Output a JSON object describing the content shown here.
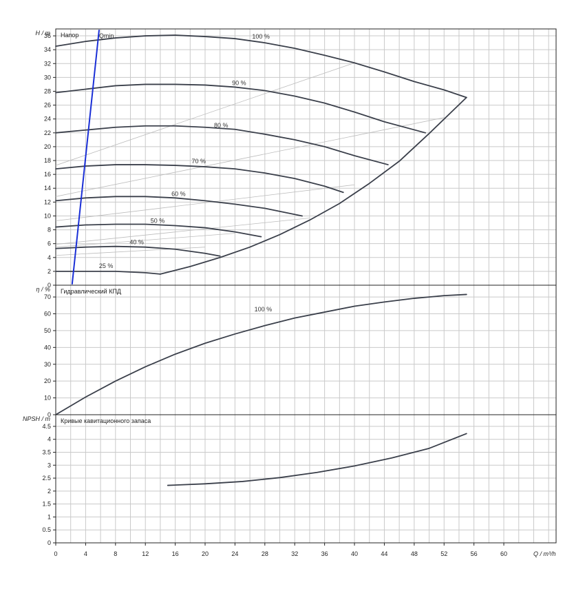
{
  "chart_data": [
    {
      "type": "line",
      "panel": "head",
      "title": "Напор",
      "ylabel": "H / m",
      "xlabel": "Q / m³/h",
      "xlim": [
        0,
        67
      ],
      "ylim": [
        0,
        37
      ],
      "x_ticks": [
        0,
        4,
        8,
        12,
        16,
        20,
        24,
        28,
        32,
        36,
        40,
        44,
        48,
        52,
        56,
        60
      ],
      "y_ticks": [
        0,
        2,
        4,
        6,
        8,
        10,
        12,
        14,
        16,
        18,
        20,
        22,
        24,
        26,
        28,
        30,
        32,
        34,
        36
      ],
      "grid": true,
      "series": [
        {
          "name": "100 %",
          "points": [
            [
              0,
              34.5
            ],
            [
              4,
              35.2
            ],
            [
              8,
              35.7
            ],
            [
              12,
              36.0
            ],
            [
              16,
              36.1
            ],
            [
              20,
              35.9
            ],
            [
              24,
              35.6
            ],
            [
              28,
              35.0
            ],
            [
              32,
              34.2
            ],
            [
              36,
              33.2
            ],
            [
              40,
              32.1
            ],
            [
              44,
              30.8
            ],
            [
              48,
              29.4
            ],
            [
              52,
              28.2
            ],
            [
              55,
              27.1
            ]
          ]
        },
        {
          "name": "90 %",
          "points": [
            [
              0,
              27.8
            ],
            [
              4,
              28.3
            ],
            [
              8,
              28.8
            ],
            [
              12,
              29.0
            ],
            [
              16,
              29.0
            ],
            [
              20,
              28.9
            ],
            [
              24,
              28.6
            ],
            [
              28,
              28.1
            ],
            [
              32,
              27.3
            ],
            [
              36,
              26.3
            ],
            [
              40,
              25.0
            ],
            [
              44,
              23.6
            ],
            [
              49.5,
              22.0
            ]
          ]
        },
        {
          "name": "80 %",
          "points": [
            [
              0,
              22.0
            ],
            [
              4,
              22.4
            ],
            [
              8,
              22.8
            ],
            [
              12,
              23.0
            ],
            [
              16,
              23.0
            ],
            [
              20,
              22.8
            ],
            [
              24,
              22.5
            ],
            [
              28,
              21.8
            ],
            [
              32,
              21.0
            ],
            [
              36,
              20.0
            ],
            [
              40,
              18.7
            ],
            [
              44.5,
              17.4
            ]
          ]
        },
        {
          "name": "70 %",
          "points": [
            [
              0,
              16.8
            ],
            [
              4,
              17.2
            ],
            [
              8,
              17.4
            ],
            [
              12,
              17.4
            ],
            [
              16,
              17.3
            ],
            [
              20,
              17.1
            ],
            [
              24,
              16.8
            ],
            [
              28,
              16.2
            ],
            [
              32,
              15.4
            ],
            [
              36,
              14.3
            ],
            [
              38.5,
              13.4
            ]
          ]
        },
        {
          "name": "60 %",
          "points": [
            [
              0,
              12.2
            ],
            [
              4,
              12.6
            ],
            [
              8,
              12.8
            ],
            [
              12,
              12.8
            ],
            [
              16,
              12.6
            ],
            [
              20,
              12.2
            ],
            [
              24,
              11.7
            ],
            [
              28,
              11.1
            ],
            [
              33,
              10.0
            ]
          ]
        },
        {
          "name": "50 %",
          "points": [
            [
              0,
              8.4
            ],
            [
              4,
              8.7
            ],
            [
              8,
              8.8
            ],
            [
              12,
              8.8
            ],
            [
              16,
              8.6
            ],
            [
              20,
              8.3
            ],
            [
              24,
              7.7
            ],
            [
              27.5,
              7.0
            ]
          ]
        },
        {
          "name": "40 %",
          "points": [
            [
              0,
              5.3
            ],
            [
              4,
              5.5
            ],
            [
              8,
              5.6
            ],
            [
              12,
              5.5
            ],
            [
              16,
              5.2
            ],
            [
              20,
              4.6
            ],
            [
              22,
              4.2
            ]
          ]
        },
        {
          "name": "25 %",
          "points": [
            [
              0,
              2.0
            ],
            [
              4,
              2.0
            ],
            [
              8,
              2.0
            ],
            [
              12,
              1.8
            ],
            [
              14,
              1.6
            ]
          ]
        },
        {
          "name": "",
          "points": [
            [
              14,
              1.6
            ],
            [
              18,
              2.7
            ],
            [
              22,
              4.0
            ],
            [
              26,
              5.5
            ],
            [
              30,
              7.3
            ],
            [
              34,
              9.4
            ],
            [
              38,
              11.8
            ],
            [
              42,
              14.7
            ],
            [
              46,
              17.9
            ],
            [
              50,
              21.9
            ],
            [
              55,
              27.1
            ]
          ]
        },
        {
          "name": "Qmin",
          "points": [
            [
              2.2,
              0.2
            ],
            [
              5.8,
              36.8
            ]
          ]
        }
      ],
      "system_curves": [
        {
          "from": [
            0,
            17.3
          ],
          "to": [
            40,
            32.1
          ]
        },
        {
          "from": [
            0,
            12.8
          ],
          "to": [
            52,
            24.2
          ]
        },
        {
          "from": [
            0,
            9.3
          ],
          "to": [
            40,
            14.5
          ]
        },
        {
          "from": [
            0,
            5.9
          ],
          "to": [
            34,
            9.7
          ]
        },
        {
          "from": [
            0,
            5.5
          ],
          "to": [
            24,
            7.5
          ]
        },
        {
          "from": [
            0,
            4.3
          ],
          "to": [
            20,
            5.5
          ]
        },
        {
          "from": [
            14,
            1.6
          ],
          "to": [
            17,
            2.4
          ]
        }
      ],
      "labels": [
        {
          "text": "Qmin",
          "x": 5.8,
          "y": 35.7
        },
        {
          "text": "100 %",
          "x": 26.3,
          "y": 35.6
        },
        {
          "text": "90 %",
          "x": 23.6,
          "y": 28.9
        },
        {
          "text": "80 %",
          "x": 21.2,
          "y": 22.8
        },
        {
          "text": "70 %",
          "x": 18.2,
          "y": 17.6
        },
        {
          "text": "60 %",
          "x": 15.5,
          "y": 12.9
        },
        {
          "text": "50 %",
          "x": 12.7,
          "y": 9.0
        },
        {
          "text": "40 %",
          "x": 9.9,
          "y": 5.9
        },
        {
          "text": "25 %",
          "x": 5.8,
          "y": 2.5
        }
      ]
    },
    {
      "type": "line",
      "panel": "efficiency",
      "title": "Гидравлический КПД",
      "ylabel": "η / %",
      "xlim": [
        0,
        67
      ],
      "ylim": [
        0,
        77
      ],
      "y_ticks": [
        0,
        10,
        20,
        30,
        40,
        50,
        60,
        70
      ],
      "grid": true,
      "series": [
        {
          "name": "100 %",
          "points": [
            [
              0,
              0
            ],
            [
              4,
              10.5
            ],
            [
              8,
              20.0
            ],
            [
              12,
              28.5
            ],
            [
              16,
              36.0
            ],
            [
              20,
              42.5
            ],
            [
              24,
              48.0
            ],
            [
              28,
              53.0
            ],
            [
              32,
              57.5
            ],
            [
              36,
              61.0
            ],
            [
              40,
              64.5
            ],
            [
              44,
              67.0
            ],
            [
              48,
              69.2
            ],
            [
              52,
              70.8
            ],
            [
              55,
              71.5
            ]
          ]
        }
      ],
      "labels": [
        {
          "text": "100 %",
          "x": 26.6,
          "y": 61.5
        }
      ]
    },
    {
      "type": "line",
      "panel": "npsh",
      "title": "Кривые кавитационного запаса",
      "ylabel": "NPSH / m",
      "xlim": [
        0,
        67
      ],
      "ylim": [
        0,
        4.95
      ],
      "y_ticks": [
        "0",
        "0.5",
        "1",
        "1.5",
        "2",
        "2.5",
        "3",
        "3.5",
        "4",
        "4.5"
      ],
      "grid": true,
      "series": [
        {
          "name": "",
          "points": [
            [
              15,
              2.22
            ],
            [
              20,
              2.28
            ],
            [
              25,
              2.37
            ],
            [
              30,
              2.52
            ],
            [
              35,
              2.72
            ],
            [
              40,
              2.97
            ],
            [
              45,
              3.28
            ],
            [
              50,
              3.65
            ],
            [
              55,
              4.22
            ]
          ]
        }
      ]
    }
  ],
  "x_axis": {
    "ticks": [
      0,
      4,
      8,
      12,
      16,
      20,
      24,
      28,
      32,
      36,
      40,
      44,
      48,
      52,
      56,
      60
    ],
    "label": "Q / m³/h"
  }
}
